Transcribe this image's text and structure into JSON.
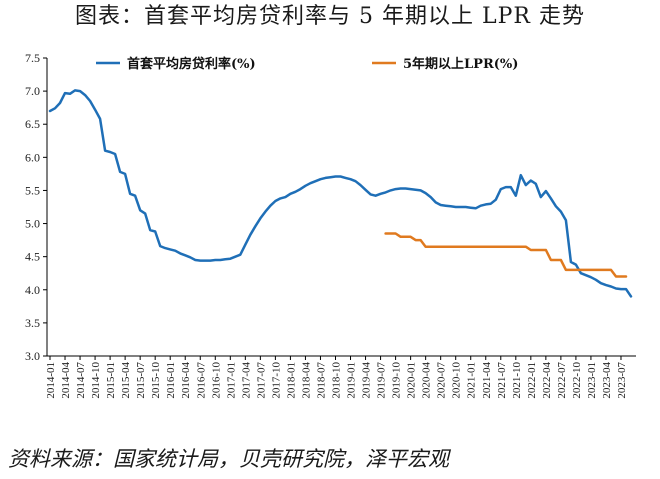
{
  "title": "图表：首套平均房贷利率与 5 年期以上 LPR 走势",
  "source": "资料来源：国家统计局，贝壳研究院，泽平宏观",
  "colors": {
    "series1": "#1f6fb7",
    "series2": "#e07a1f",
    "axis": "#000000"
  },
  "chart_data": {
    "type": "line",
    "ylim": [
      3.0,
      7.5
    ],
    "yticks": [
      "3.0",
      "3.5",
      "4.0",
      "4.5",
      "5.0",
      "5.5",
      "6.0",
      "6.5",
      "7.0",
      "7.5"
    ],
    "xticks": [
      "2014-01",
      "2014-04",
      "2014-07",
      "2014-10",
      "2015-01",
      "2015-04",
      "2015-07",
      "2015-10",
      "2016-01",
      "2016-04",
      "2016-07",
      "2016-10",
      "2017-01",
      "2017-04",
      "2017-07",
      "2017-10",
      "2018-01",
      "2018-04",
      "2018-07",
      "2018-10",
      "2019-01",
      "2019-04",
      "2019-07",
      "2019-10",
      "2020-01",
      "2020-04",
      "2020-07",
      "2020-10",
      "2021-01",
      "2021-04",
      "2021-07",
      "2021-10",
      "2022-01",
      "2022-04",
      "2022-07",
      "2022-10",
      "2023-01",
      "2023-04",
      "2023-07"
    ],
    "legend_position": "top",
    "series": [
      {
        "name": "首套平均房贷利率(%)",
        "points": [
          [
            "2014-01",
            6.7
          ],
          [
            "2014-02",
            6.74
          ],
          [
            "2014-03",
            6.82
          ],
          [
            "2014-04",
            6.97
          ],
          [
            "2014-05",
            6.96
          ],
          [
            "2014-06",
            7.01
          ],
          [
            "2014-07",
            7.0
          ],
          [
            "2014-08",
            6.94
          ],
          [
            "2014-09",
            6.85
          ],
          [
            "2014-10",
            6.72
          ],
          [
            "2014-11",
            6.58
          ],
          [
            "2014-12",
            6.1
          ],
          [
            "2015-01",
            6.08
          ],
          [
            "2015-02",
            6.05
          ],
          [
            "2015-03",
            5.78
          ],
          [
            "2015-04",
            5.75
          ],
          [
            "2015-05",
            5.45
          ],
          [
            "2015-06",
            5.42
          ],
          [
            "2015-07",
            5.2
          ],
          [
            "2015-08",
            5.15
          ],
          [
            "2015-09",
            4.9
          ],
          [
            "2015-10",
            4.88
          ],
          [
            "2015-11",
            4.66
          ],
          [
            "2015-12",
            4.63
          ],
          [
            "2016-01",
            4.61
          ],
          [
            "2016-02",
            4.59
          ],
          [
            "2016-03",
            4.55
          ],
          [
            "2016-04",
            4.52
          ],
          [
            "2016-05",
            4.49
          ],
          [
            "2016-06",
            4.45
          ],
          [
            "2016-07",
            4.44
          ],
          [
            "2016-08",
            4.44
          ],
          [
            "2016-09",
            4.44
          ],
          [
            "2016-10",
            4.45
          ],
          [
            "2016-11",
            4.45
          ],
          [
            "2016-12",
            4.46
          ],
          [
            "2017-01",
            4.47
          ],
          [
            "2017-02",
            4.5
          ],
          [
            "2017-03",
            4.53
          ],
          [
            "2017-04",
            4.68
          ],
          [
            "2017-05",
            4.83
          ],
          [
            "2017-06",
            4.96
          ],
          [
            "2017-07",
            5.08
          ],
          [
            "2017-08",
            5.18
          ],
          [
            "2017-09",
            5.27
          ],
          [
            "2017-10",
            5.34
          ],
          [
            "2017-11",
            5.38
          ],
          [
            "2017-12",
            5.4
          ],
          [
            "2018-01",
            5.45
          ],
          [
            "2018-02",
            5.48
          ],
          [
            "2018-03",
            5.52
          ],
          [
            "2018-04",
            5.57
          ],
          [
            "2018-05",
            5.61
          ],
          [
            "2018-06",
            5.64
          ],
          [
            "2018-07",
            5.67
          ],
          [
            "2018-08",
            5.69
          ],
          [
            "2018-09",
            5.7
          ],
          [
            "2018-10",
            5.71
          ],
          [
            "2018-11",
            5.71
          ],
          [
            "2018-12",
            5.69
          ],
          [
            "2019-01",
            5.67
          ],
          [
            "2019-02",
            5.64
          ],
          [
            "2019-03",
            5.58
          ],
          [
            "2019-04",
            5.51
          ],
          [
            "2019-05",
            5.44
          ],
          [
            "2019-06",
            5.42
          ],
          [
            "2019-07",
            5.45
          ],
          [
            "2019-08",
            5.47
          ],
          [
            "2019-09",
            5.5
          ],
          [
            "2019-10",
            5.52
          ],
          [
            "2019-11",
            5.53
          ],
          [
            "2019-12",
            5.53
          ],
          [
            "2020-01",
            5.52
          ],
          [
            "2020-02",
            5.51
          ],
          [
            "2020-03",
            5.5
          ],
          [
            "2020-04",
            5.46
          ],
          [
            "2020-05",
            5.4
          ],
          [
            "2020-06",
            5.32
          ],
          [
            "2020-07",
            5.28
          ],
          [
            "2020-08",
            5.27
          ],
          [
            "2020-09",
            5.26
          ],
          [
            "2020-10",
            5.25
          ],
          [
            "2020-11",
            5.25
          ],
          [
            "2020-12",
            5.25
          ],
          [
            "2021-01",
            5.24
          ],
          [
            "2021-02",
            5.23
          ],
          [
            "2021-03",
            5.27
          ],
          [
            "2021-04",
            5.29
          ],
          [
            "2021-05",
            5.3
          ],
          [
            "2021-06",
            5.36
          ],
          [
            "2021-07",
            5.52
          ],
          [
            "2021-08",
            5.55
          ],
          [
            "2021-09",
            5.55
          ],
          [
            "2021-10",
            5.42
          ],
          [
            "2021-11",
            5.73
          ],
          [
            "2021-12",
            5.58
          ],
          [
            "2022-01",
            5.65
          ],
          [
            "2022-02",
            5.6
          ],
          [
            "2022-03",
            5.4
          ],
          [
            "2022-04",
            5.49
          ],
          [
            "2022-05",
            5.38
          ],
          [
            "2022-06",
            5.26
          ],
          [
            "2022-07",
            5.18
          ],
          [
            "2022-08",
            5.05
          ],
          [
            "2022-09",
            4.42
          ],
          [
            "2022-10",
            4.38
          ],
          [
            "2022-11",
            4.25
          ],
          [
            "2022-12",
            4.22
          ],
          [
            "2023-01",
            4.19
          ],
          [
            "2023-02",
            4.15
          ],
          [
            "2023-03",
            4.1
          ],
          [
            "2023-04",
            4.07
          ],
          [
            "2023-05",
            4.05
          ],
          [
            "2023-06",
            4.02
          ],
          [
            "2023-07",
            4.01
          ],
          [
            "2023-08",
            4.01
          ],
          [
            "2023-09",
            3.9
          ]
        ]
      },
      {
        "name": "5年期以上LPR(%)",
        "points": [
          [
            "2019-08",
            4.85
          ],
          [
            "2019-09",
            4.85
          ],
          [
            "2019-10",
            4.85
          ],
          [
            "2019-11",
            4.8
          ],
          [
            "2019-12",
            4.8
          ],
          [
            "2020-01",
            4.8
          ],
          [
            "2020-02",
            4.75
          ],
          [
            "2020-03",
            4.75
          ],
          [
            "2020-04",
            4.65
          ],
          [
            "2020-05",
            4.65
          ],
          [
            "2020-06",
            4.65
          ],
          [
            "2020-07",
            4.65
          ],
          [
            "2020-08",
            4.65
          ],
          [
            "2020-09",
            4.65
          ],
          [
            "2020-10",
            4.65
          ],
          [
            "2020-11",
            4.65
          ],
          [
            "2020-12",
            4.65
          ],
          [
            "2021-01",
            4.65
          ],
          [
            "2021-02",
            4.65
          ],
          [
            "2021-03",
            4.65
          ],
          [
            "2021-04",
            4.65
          ],
          [
            "2021-05",
            4.65
          ],
          [
            "2021-06",
            4.65
          ],
          [
            "2021-07",
            4.65
          ],
          [
            "2021-08",
            4.65
          ],
          [
            "2021-09",
            4.65
          ],
          [
            "2021-10",
            4.65
          ],
          [
            "2021-11",
            4.65
          ],
          [
            "2021-12",
            4.65
          ],
          [
            "2022-01",
            4.6
          ],
          [
            "2022-02",
            4.6
          ],
          [
            "2022-03",
            4.6
          ],
          [
            "2022-04",
            4.6
          ],
          [
            "2022-05",
            4.45
          ],
          [
            "2022-06",
            4.45
          ],
          [
            "2022-07",
            4.45
          ],
          [
            "2022-08",
            4.3
          ],
          [
            "2022-09",
            4.3
          ],
          [
            "2022-10",
            4.3
          ],
          [
            "2022-11",
            4.3
          ],
          [
            "2022-12",
            4.3
          ],
          [
            "2023-01",
            4.3
          ],
          [
            "2023-02",
            4.3
          ],
          [
            "2023-03",
            4.3
          ],
          [
            "2023-04",
            4.3
          ],
          [
            "2023-05",
            4.3
          ],
          [
            "2023-06",
            4.2
          ],
          [
            "2023-07",
            4.2
          ],
          [
            "2023-08",
            4.2
          ]
        ]
      }
    ]
  }
}
